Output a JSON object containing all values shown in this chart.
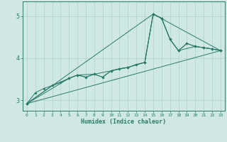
{
  "xlabel": "Humidex (Indice chaleur)",
  "ylabel": "",
  "xlim": [
    -0.5,
    23.5
  ],
  "ylim": [
    2.75,
    5.35
  ],
  "yticks": [
    3,
    4,
    5
  ],
  "xticks": [
    0,
    1,
    2,
    3,
    4,
    5,
    6,
    7,
    8,
    9,
    10,
    11,
    12,
    13,
    14,
    15,
    16,
    17,
    18,
    19,
    20,
    21,
    22,
    23
  ],
  "bg_color": "#cfe8e4",
  "grid_color": "#b0d0cc",
  "line_color": "#2a7a6a",
  "lines": {
    "main": {
      "x": [
        0,
        1,
        2,
        3,
        4,
        5,
        6,
        7,
        8,
        9,
        10,
        11,
        12,
        13,
        14,
        15,
        16,
        17,
        18,
        19,
        20,
        21,
        22,
        23
      ],
      "y": [
        2.92,
        3.18,
        3.28,
        3.35,
        3.42,
        3.52,
        3.6,
        3.55,
        3.62,
        3.55,
        3.7,
        3.75,
        3.78,
        3.85,
        3.9,
        5.05,
        4.95,
        4.45,
        4.18,
        4.35,
        4.28,
        4.25,
        4.22,
        4.18
      ]
    },
    "diagonal": {
      "x": [
        0,
        23
      ],
      "y": [
        2.92,
        4.18
      ]
    },
    "peak_triangle": {
      "x": [
        0,
        15,
        23
      ],
      "y": [
        2.92,
        5.05,
        4.18
      ]
    },
    "from_zero_to_end": {
      "x": [
        0,
        5,
        6,
        7,
        8,
        9,
        10,
        11,
        12,
        13,
        14,
        15,
        16,
        17,
        18,
        19,
        20,
        21,
        22,
        23
      ],
      "y": [
        2.92,
        3.52,
        3.6,
        3.55,
        3.62,
        3.55,
        3.7,
        3.75,
        3.78,
        3.85,
        3.9,
        5.05,
        4.95,
        4.45,
        4.18,
        4.35,
        4.28,
        4.25,
        4.22,
        4.18
      ]
    },
    "sparse": {
      "x": [
        0,
        3,
        5,
        6,
        8,
        10,
        12,
        14,
        15,
        16,
        17,
        18,
        20,
        21,
        22,
        23
      ],
      "y": [
        2.92,
        3.35,
        3.52,
        3.6,
        3.62,
        3.7,
        3.78,
        3.9,
        5.05,
        4.95,
        4.45,
        4.18,
        4.28,
        4.25,
        4.22,
        4.18
      ]
    }
  }
}
